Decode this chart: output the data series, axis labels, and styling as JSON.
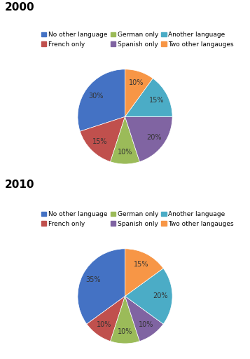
{
  "title2000": "2000",
  "title2010": "2010",
  "labels": [
    "No other language",
    "French only",
    "German only",
    "Spanish only",
    "Another language",
    "Two other langauges"
  ],
  "colors": [
    "#4472c4",
    "#c0504d",
    "#9bbb59",
    "#8064a2",
    "#4bacc6",
    "#f79646"
  ],
  "values_2000": [
    30,
    15,
    10,
    20,
    15,
    10
  ],
  "values_2010": [
    35,
    10,
    10,
    10,
    20,
    15
  ],
  "startangle_2000": 90,
  "startangle_2010": 90,
  "pct_fontsize": 7,
  "legend_fontsize": 6.5,
  "title_fontsize": 11
}
